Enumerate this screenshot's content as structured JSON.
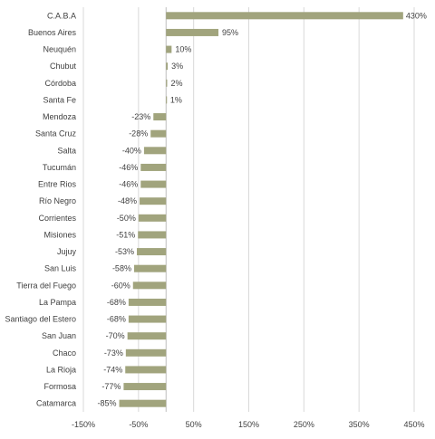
{
  "chart_data": {
    "type": "bar",
    "orientation": "horizontal",
    "title": "",
    "xlabel": "",
    "ylabel": "",
    "categories": [
      "C.A.B.A",
      "Buenos Aires",
      "Neuquén",
      "Chubut",
      "Córdoba",
      "Santa Fe",
      "Mendoza",
      "Santa Cruz",
      "Salta",
      "Tucumán",
      "Entre Rios",
      "Río Negro",
      "Corrientes",
      "Misiones",
      "Jujuy",
      "San Luis",
      "Tierra del Fuego",
      "La Pampa",
      "Santiago del Estero",
      "San Juan",
      "Chaco",
      "La Rioja",
      "Formosa",
      "Catamarca"
    ],
    "values": [
      430,
      95,
      10,
      3,
      2,
      1,
      -23,
      -28,
      -40,
      -46,
      -46,
      -48,
      -50,
      -51,
      -53,
      -58,
      -60,
      -68,
      -68,
      -70,
      -73,
      -74,
      -77,
      -85
    ],
    "data_labels": [
      "430%",
      "95%",
      "10%",
      "3%",
      "2%",
      "1%",
      "-23%",
      "-28%",
      "-40%",
      "-46%",
      "-46%",
      "-48%",
      "-50%",
      "-51%",
      "-53%",
      "-58%",
      "-60%",
      "-68%",
      "-68%",
      "-70%",
      "-73%",
      "-74%",
      "-77%",
      "-85%"
    ],
    "xlim": [
      -150,
      450
    ],
    "xticks": [
      -150,
      -50,
      50,
      150,
      250,
      350,
      450
    ],
    "xtick_labels": [
      "-150%",
      "-50%",
      "50%",
      "150%",
      "250%",
      "350%",
      "450%"
    ],
    "grid": true,
    "bar_color": "#a1a47d",
    "grid_color": "#d9d9d9"
  }
}
